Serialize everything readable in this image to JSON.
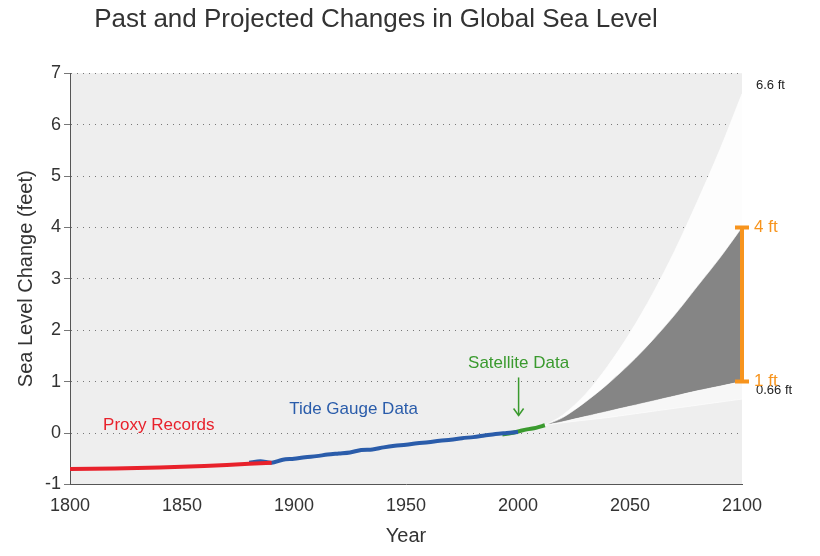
{
  "chart_data": {
    "type": "line",
    "title": "Past and Projected Changes in Global Sea Level",
    "x_label": "Year",
    "y_label": "Sea Level Change (feet)",
    "xlim": [
      1800,
      2100
    ],
    "xticks": [
      1800,
      1850,
      1900,
      1950,
      2000,
      2050,
      2100
    ],
    "ylim": [
      -1,
      7
    ],
    "yticks": [
      -1,
      0,
      1,
      2,
      3,
      4,
      5,
      6,
      7
    ],
    "grid": true,
    "series": [
      {
        "name": "Proxy Records",
        "type": "line",
        "color": "#e8212b",
        "x": [
          1800,
          1820,
          1840,
          1860,
          1880,
          1890
        ],
        "values": [
          -0.7,
          -0.69,
          -0.67,
          -0.64,
          -0.6,
          -0.58
        ]
      },
      {
        "name": "Tide Gauge Data",
        "type": "line",
        "color": "#2a5caa",
        "x": [
          1880,
          1885,
          1890,
          1895,
          1900,
          1905,
          1910,
          1915,
          1920,
          1925,
          1930,
          1935,
          1940,
          1945,
          1950,
          1955,
          1960,
          1965,
          1970,
          1975,
          1980,
          1985,
          1990,
          1995,
          2000
        ],
        "values": [
          -0.58,
          -0.55,
          -0.58,
          -0.52,
          -0.5,
          -0.47,
          -0.45,
          -0.42,
          -0.4,
          -0.38,
          -0.33,
          -0.32,
          -0.28,
          -0.25,
          -0.23,
          -0.2,
          -0.18,
          -0.15,
          -0.13,
          -0.1,
          -0.08,
          -0.05,
          -0.02,
          0.0,
          0.02
        ]
      },
      {
        "name": "Satellite Data",
        "type": "line",
        "color": "#3a9a2e",
        "x": [
          1993,
          1997,
          2000,
          2004,
          2008,
          2012
        ],
        "values": [
          -0.03,
          0.0,
          0.03,
          0.07,
          0.1,
          0.15
        ]
      },
      {
        "name": "0.66 ft",
        "type": "area",
        "color": "#fbfbfb",
        "x": [
          2012,
          2020,
          2030,
          2040,
          2050,
          2060,
          2070,
          2080,
          2090,
          2100
        ],
        "values": [
          0.15,
          0.2,
          0.25,
          0.3,
          0.36,
          0.42,
          0.48,
          0.54,
          0.6,
          0.66
        ]
      },
      {
        "name": "1 ft",
        "type": "area",
        "color": "#f7f7f7",
        "x": [
          2012,
          2020,
          2030,
          2040,
          2050,
          2060,
          2070,
          2080,
          2090,
          2100
        ],
        "values": [
          0.15,
          0.22,
          0.32,
          0.42,
          0.52,
          0.62,
          0.72,
          0.82,
          0.91,
          1.0
        ]
      },
      {
        "name": "4 ft",
        "type": "area",
        "color": "#858585",
        "x": [
          2012,
          2020,
          2030,
          2040,
          2050,
          2060,
          2070,
          2080,
          2090,
          2100
        ],
        "values": [
          0.15,
          0.3,
          0.6,
          0.95,
          1.35,
          1.8,
          2.3,
          2.85,
          3.4,
          4.0
        ]
      },
      {
        "name": "6.6 ft",
        "type": "area",
        "color": "#fdfdfd",
        "x": [
          2012,
          2020,
          2030,
          2040,
          2050,
          2060,
          2070,
          2080,
          2090,
          2100
        ],
        "values": [
          0.15,
          0.35,
          0.75,
          1.3,
          1.95,
          2.7,
          3.55,
          4.5,
          5.5,
          6.6
        ]
      }
    ],
    "range_bar": {
      "x": 2100,
      "low": 1,
      "high": 4,
      "color": "#f7941d"
    }
  }
}
